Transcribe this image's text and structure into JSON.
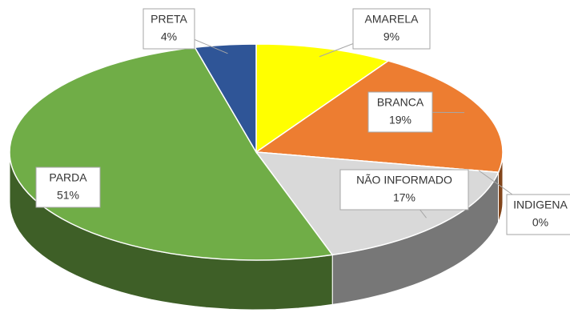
{
  "chart_data": {
    "type": "pie",
    "categories": [
      "AMARELA",
      "BRANCA",
      "INDIGENA",
      "NÃO INFORMADO",
      "PARDA",
      "PRETA"
    ],
    "values": [
      9,
      19,
      0,
      17,
      51,
      4
    ],
    "value_labels": [
      "9%",
      "19%",
      "0%",
      "17%",
      "51%",
      "4%"
    ],
    "colors": [
      "#ffff00",
      "#ed7d31",
      "#5b9bd5",
      "#d9d9d9",
      "#70ad47",
      "#2f5597"
    ]
  }
}
